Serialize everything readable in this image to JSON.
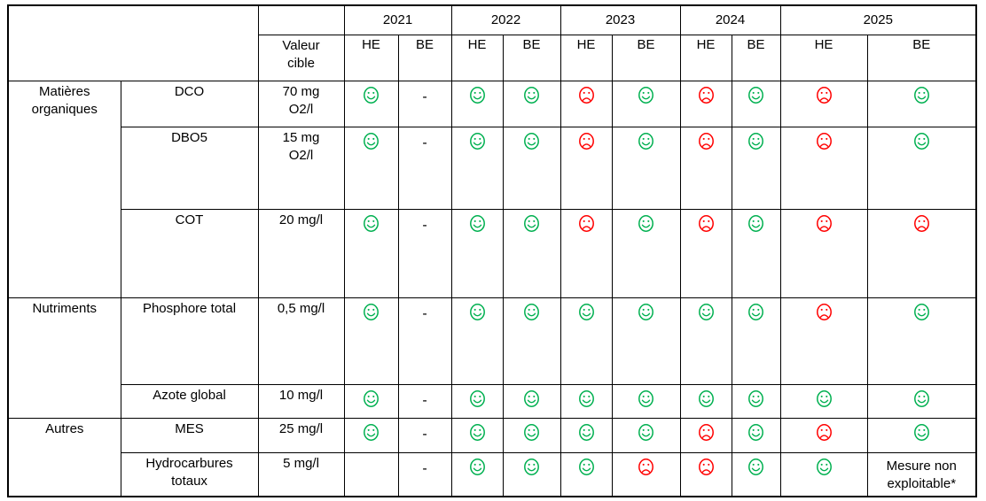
{
  "table": {
    "corner": "",
    "target_header": "Valeur\ncible",
    "years": [
      "2021",
      "2022",
      "2023",
      "2024",
      "2025"
    ],
    "period_headers": [
      "HE",
      "BE"
    ],
    "value_columns": [
      "2021 HE",
      "2021 BE",
      "2022 HE",
      "2022 BE",
      "2023 HE",
      "2023 BE",
      "2024 HE",
      "2024 BE",
      "2025 HE",
      "2025 BE"
    ],
    "legend": {
      "happy_icon": "green-smiley-face",
      "sad_icon": "red-sad-face",
      "dash": "-"
    },
    "colors": {
      "happy": "#00B050",
      "sad": "#FF0000",
      "border": "#000000",
      "background": "#FFFFFF"
    },
    "groups": [
      {
        "name": "Matières\norganiques",
        "rows": [
          {
            "parameter": "DCO",
            "target": "70 mg\nO2/l",
            "values": [
              "happy",
              "dash",
              "happy",
              "happy",
              "sad",
              "happy",
              "sad",
              "happy",
              "sad",
              "happy"
            ]
          },
          {
            "parameter": "DBO5",
            "target": "15 mg\nO2/l",
            "values": [
              "happy",
              "dash",
              "happy",
              "happy",
              "sad",
              "happy",
              "sad",
              "happy",
              "sad",
              "happy"
            ]
          },
          {
            "parameter": "COT",
            "target": "20 mg/l",
            "values": [
              "happy",
              "dash",
              "happy",
              "happy",
              "sad",
              "happy",
              "sad",
              "happy",
              "sad",
              "sad"
            ]
          }
        ]
      },
      {
        "name": "Nutriments",
        "rows": [
          {
            "parameter": "Phosphore total",
            "target": "0,5 mg/l",
            "values": [
              "happy",
              "dash",
              "happy",
              "happy",
              "happy",
              "happy",
              "happy",
              "happy",
              "sad",
              "happy"
            ]
          },
          {
            "parameter": "Azote global",
            "target": "10 mg/l",
            "values": [
              "happy",
              "dash",
              "happy",
              "happy",
              "happy",
              "happy",
              "happy",
              "happy",
              "happy",
              "happy"
            ]
          }
        ]
      },
      {
        "name": "Autres",
        "rows": [
          {
            "parameter": "MES",
            "target": "25 mg/l",
            "values": [
              "happy",
              "dash",
              "happy",
              "happy",
              "happy",
              "happy",
              "sad",
              "happy",
              "sad",
              "happy"
            ]
          },
          {
            "parameter": "Hydrocarbures\ntotaux",
            "target": "5 mg/l",
            "values": [
              "empty",
              "dash",
              "happy",
              "happy",
              "happy",
              "sad",
              "sad",
              "happy",
              "happy",
              "Mesure non exploitable*"
            ]
          }
        ]
      }
    ]
  }
}
